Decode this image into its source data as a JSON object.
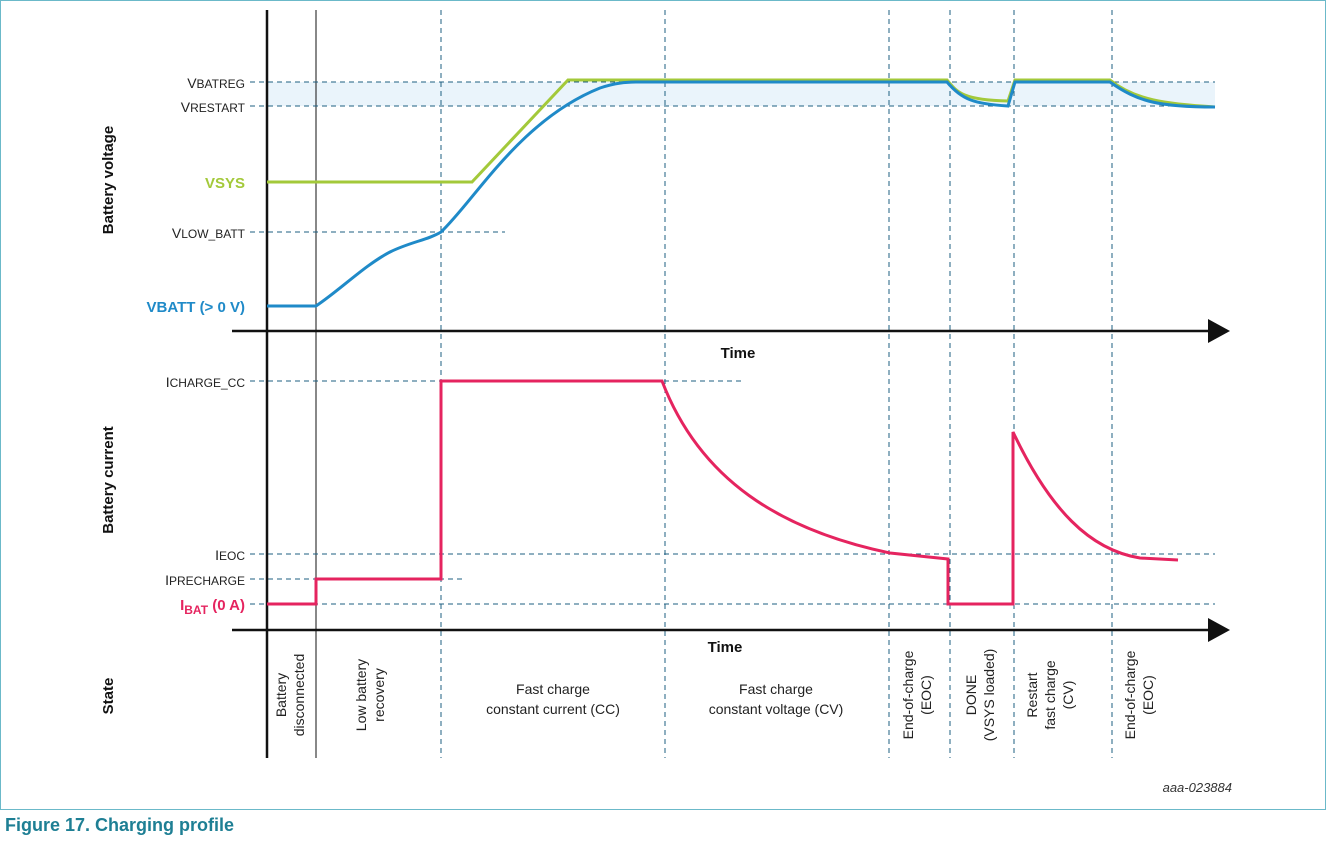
{
  "caption": "Figure 17.  Charging profile",
  "figure_id": "aaa-023884",
  "axis_labels": {
    "voltage": "Battery voltage",
    "current": "Battery current",
    "state": "State",
    "time": "Time"
  },
  "voltage_levels": [
    {
      "main": "V",
      "sub": "BATREG",
      "color": "#222222"
    },
    {
      "main": "V",
      "sub": "RESTART",
      "color": "#222222"
    },
    {
      "main": "VSYS",
      "sub": "",
      "color": "#a3c93a"
    },
    {
      "main": "V",
      "sub": "LOW_BATT",
      "color": "#222222"
    },
    {
      "main": "VBATT (> 0 V)",
      "sub": "",
      "color": "#1f8ac8"
    }
  ],
  "current_levels": [
    {
      "main": "I",
      "sub": "CHARGE_CC",
      "color": "#222222"
    },
    {
      "main": "I",
      "sub": "EOC",
      "color": "#222222"
    },
    {
      "main": "I",
      "sub": "PRECHARGE",
      "color": "#222222"
    },
    {
      "main": "I",
      "sub": "BAT",
      "tail": " (0 A)",
      "color": "#e5245f"
    }
  ],
  "states": [
    [
      "Battery",
      "disconnected"
    ],
    [
      "Low battery",
      "recovery"
    ],
    [
      "Fast charge",
      "constant current (CC)"
    ],
    [
      "Fast charge",
      "constant voltage (CV)"
    ],
    [
      "End-of-charge",
      "(EOC)"
    ],
    [
      "DONE",
      "(VSYS loaded)"
    ],
    [
      "Restart",
      "fast charge",
      "(CV)"
    ],
    [
      "End-of-charge",
      "(EOC)"
    ]
  ],
  "colors": {
    "vsys": "#a3c93a",
    "vbatt": "#1f8ac8",
    "current": "#e5245f",
    "grid": "#1e5f82",
    "caption": "#1e7f94"
  }
}
